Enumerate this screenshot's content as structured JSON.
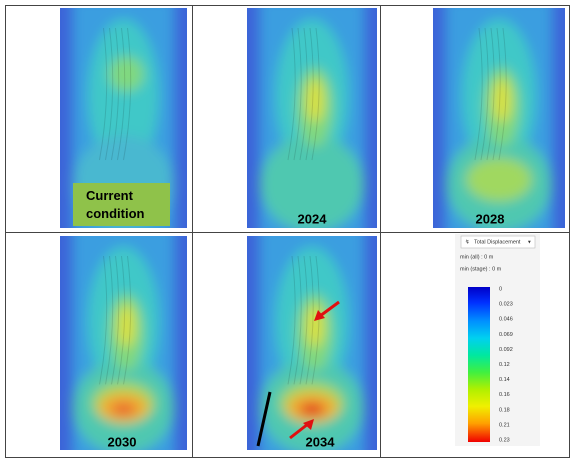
{
  "panels": [
    {
      "label": "Current condition"
    },
    {
      "label": "2024"
    },
    {
      "label": "2028"
    },
    {
      "label": "2030"
    },
    {
      "label": "2034"
    }
  ],
  "legend": {
    "title": "Total Displacement",
    "min_all": "min (all) :    0 m",
    "min_stage": "min (stage) : 0 m",
    "scale": [
      0,
      0.023,
      0.046,
      0.069,
      0.092,
      0.12,
      0.14,
      0.16,
      0.18,
      0.21,
      0.23
    ]
  }
}
